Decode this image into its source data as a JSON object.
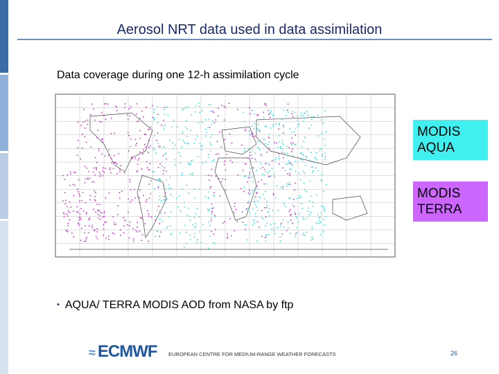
{
  "header": {
    "title": "Aerosol NRT data used in data assimilation"
  },
  "subtitle": "Data coverage during one 12-h assimilation cycle",
  "legend": [
    {
      "label": "MODIS AQUA"
    },
    {
      "label": "MODIS TERRA"
    }
  ],
  "bullets": [
    "AQUA/ TERRA MODIS AOD from NASA by ftp"
  ],
  "footer": {
    "logo": "ECMWF",
    "organization": "EUROPEAN CENTRE FOR MEDIUM-RANGE WEATHER FORECASTS",
    "page": "26"
  }
}
